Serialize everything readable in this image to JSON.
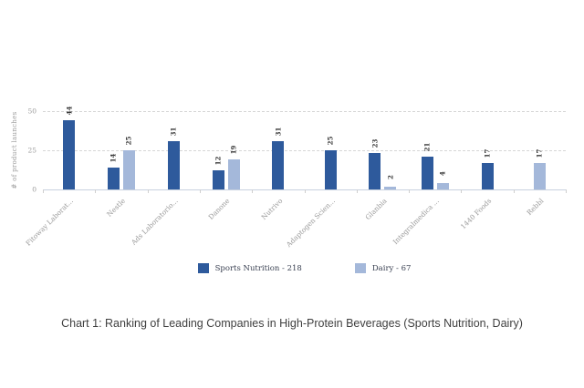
{
  "caption": "Chart 1: Ranking of Leading Companies in High-Protein Beverages (Sports Nutrition, Dairy)",
  "legend": {
    "items": [
      {
        "label": "Sports Nutrition - 218",
        "color": "#2e5a9c"
      },
      {
        "label": "Dairy - 67",
        "color": "#a4b8da"
      }
    ]
  },
  "chart_data": {
    "type": "bar",
    "title": "",
    "categories": [
      "Fitoway Laborat...",
      "Nestle",
      "Ads Laboratorio...",
      "Danone",
      "Nutrivo",
      "Adaptogen Scien...",
      "Glanbia",
      "Integralmedica ...",
      "1440 Foods",
      "Rebbl"
    ],
    "series": [
      {
        "name": "Sports Nutrition",
        "total": 218,
        "color": "#2e5a9c",
        "values": [
          44,
          14,
          31,
          12,
          31,
          25,
          23,
          21,
          17,
          null
        ]
      },
      {
        "name": "Dairy",
        "total": 67,
        "color": "#a4b8da",
        "values": [
          null,
          25,
          null,
          19,
          null,
          null,
          2,
          4,
          null,
          17
        ]
      }
    ],
    "xlabel": "",
    "ylabel": "# of product launches",
    "ylim": [
      0,
      50
    ],
    "yticks": [
      0,
      25,
      50
    ],
    "grid": "horizontal dashed at 25 and 50",
    "legend_position": "bottom",
    "bar_value_labels_rotated": true,
    "x_labels_rotated_degrees": -45
  }
}
